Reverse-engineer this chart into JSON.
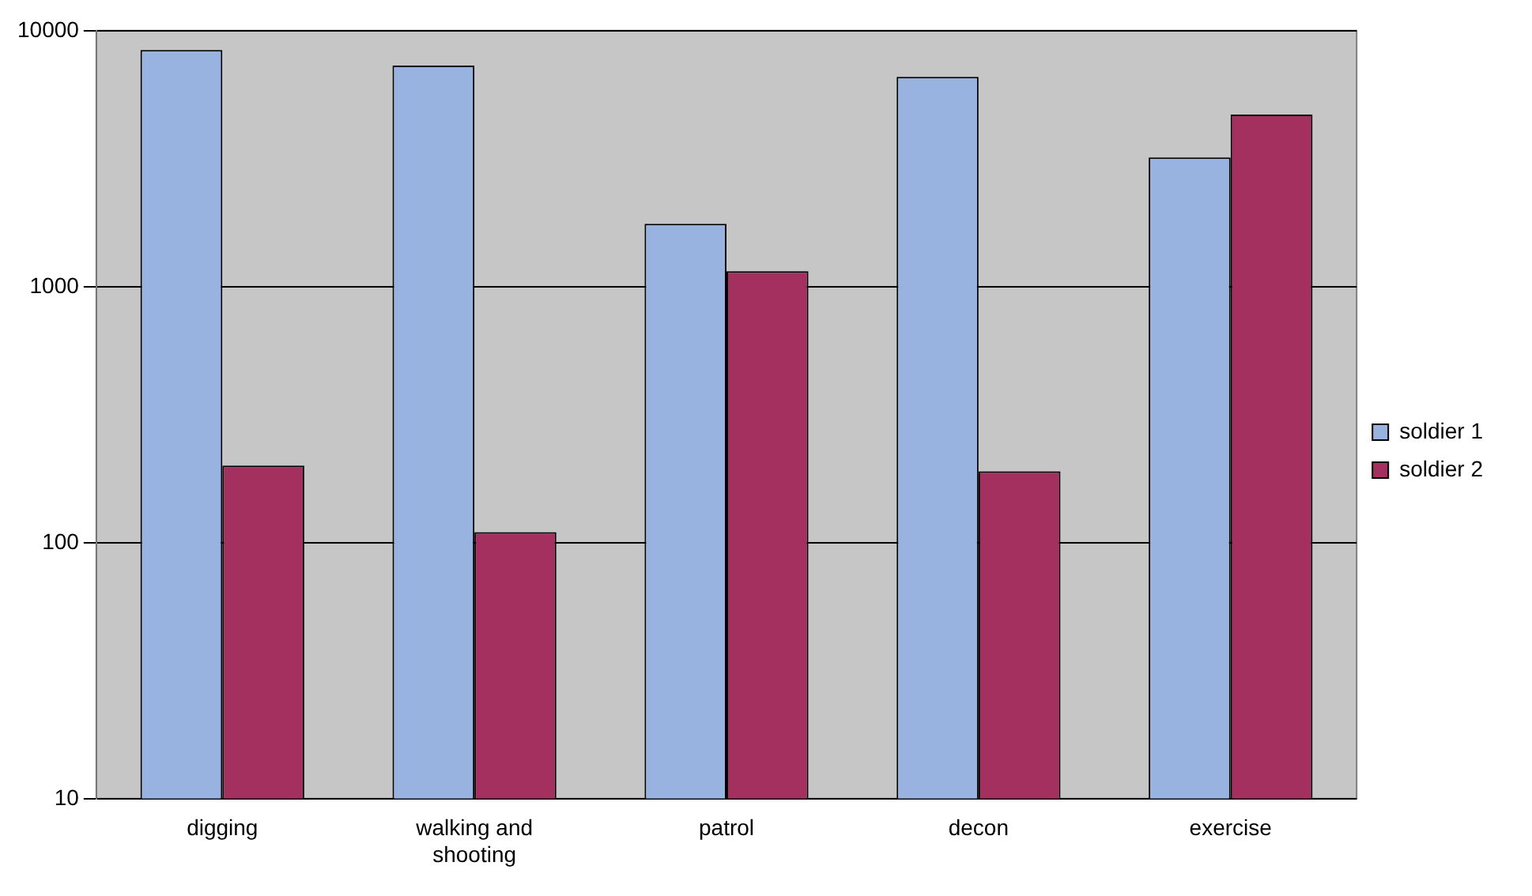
{
  "chart_data": {
    "type": "bar",
    "categories": [
      "digging",
      "walking and shooting",
      "patrol",
      "decon",
      "exercise"
    ],
    "series": [
      {
        "name": "soldier 1",
        "color": "#99b3e0",
        "values": [
          8400,
          7300,
          1760,
          6600,
          3200
        ]
      },
      {
        "name": "soldier 2",
        "color": "#a3305f",
        "values": [
          200,
          110,
          1150,
          190,
          4700
        ]
      }
    ],
    "log": "y",
    "ylim": [
      10,
      10000
    ],
    "yticks": [
      10,
      100,
      1000,
      10000
    ],
    "grid": "y",
    "legend": "right"
  }
}
